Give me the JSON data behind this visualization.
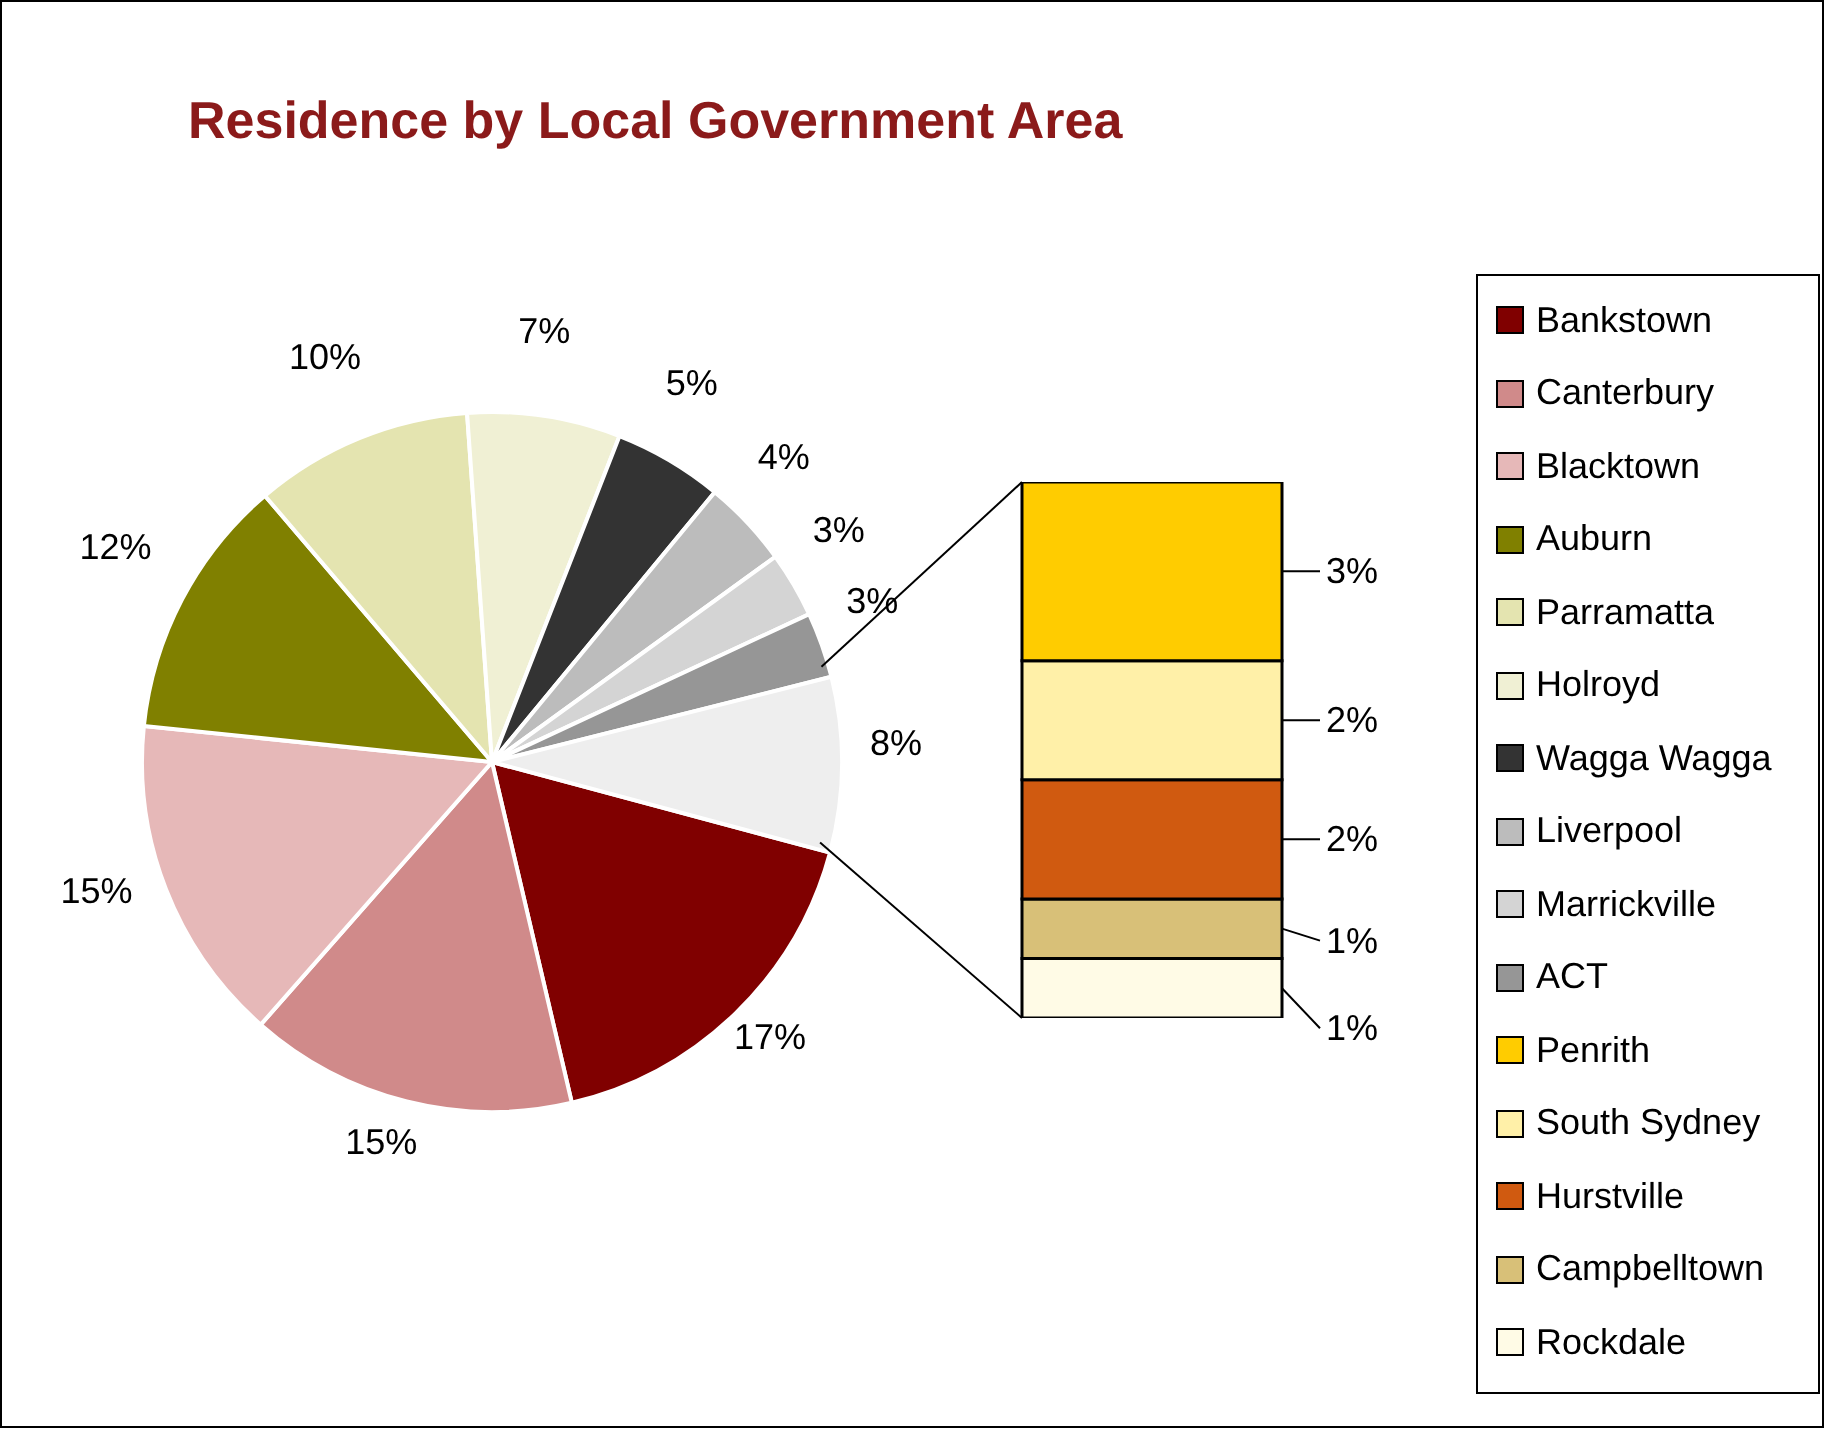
{
  "chart_data": [
    {
      "type": "pie",
      "title": "Residence by Local Government Area",
      "categories": [
        "Bankstown",
        "Canterbury",
        "Blacktown",
        "Auburn",
        "Parramatta",
        "Holroyd",
        "Wagga Wagga",
        "Liverpool",
        "Marrickville",
        "ACT",
        null
      ],
      "values": [
        17,
        15,
        15,
        12,
        10,
        7,
        5,
        4,
        3,
        3,
        8
      ],
      "value_labels": [
        "17%",
        "15%",
        "15%",
        "12%",
        "10%",
        "7%",
        "5%",
        "4%",
        "3%",
        "3%",
        "8%"
      ],
      "colors": [
        "#800000",
        "#d08a8a",
        "#e6b8b8",
        "#808000",
        "#e4e4b0",
        "#f0f0d4",
        "#333333",
        "#bcbcbc",
        "#d4d4d4",
        "#969696",
        "#eeeeee"
      ],
      "legend": "right"
    },
    {
      "type": "bar",
      "stacked": true,
      "categories": [
        null
      ],
      "series": [
        {
          "name": "Rockdale",
          "color": "#fffbe6",
          "values": [
            1
          ],
          "value_labels": [
            "1%"
          ]
        },
        {
          "name": "Campbelltown",
          "color": "#d8c078",
          "values": [
            1
          ],
          "value_labels": [
            "1%"
          ]
        },
        {
          "name": "Hurstville",
          "color": "#d05a10",
          "values": [
            2
          ],
          "value_labels": [
            "2%"
          ]
        },
        {
          "name": "South Sydney",
          "color": "#fff0a8",
          "values": [
            2
          ],
          "value_labels": [
            "2%"
          ]
        },
        {
          "name": "Penrith",
          "color": "#ffcc00",
          "values": [
            3
          ],
          "value_labels": [
            "3%"
          ]
        }
      ],
      "legend": "right"
    }
  ]
}
